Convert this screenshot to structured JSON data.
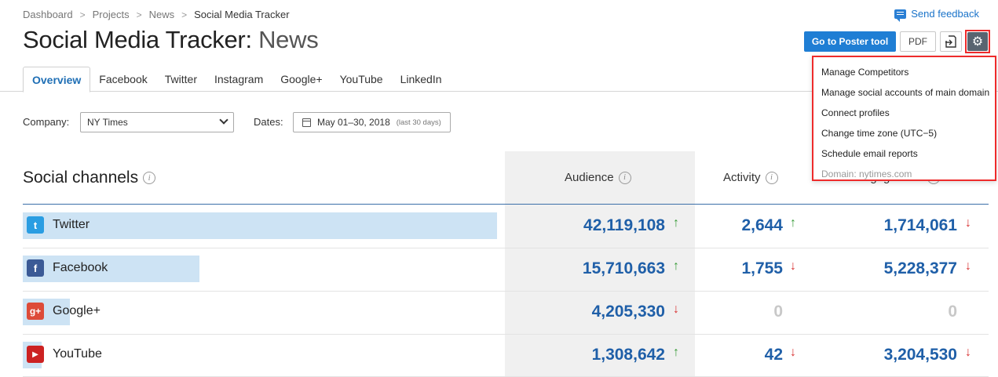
{
  "breadcrumb": [
    "Dashboard",
    "Projects",
    "News",
    "Social Media Tracker"
  ],
  "breadcrumb_separator": ">",
  "feedback": {
    "label": "Send feedback",
    "icon": "chat-bubble-icon"
  },
  "header": {
    "title": "Social Media Tracker:",
    "subtitle": "News"
  },
  "toolbar": {
    "poster_label": "Go to Poster tool",
    "pdf_label": "PDF",
    "export_icon": "export-icon",
    "settings_icon": "gear-icon"
  },
  "tabs": [
    {
      "label": "Overview",
      "active": true
    },
    {
      "label": "Facebook",
      "active": false
    },
    {
      "label": "Twitter",
      "active": false
    },
    {
      "label": "Instagram",
      "active": false
    },
    {
      "label": "Google+",
      "active": false
    },
    {
      "label": "YouTube",
      "active": false
    },
    {
      "label": "LinkedIn",
      "active": false
    }
  ],
  "filters": {
    "company_label": "Company:",
    "company_value": "NY Times",
    "dates_label": "Dates:",
    "dates_value": "May 01–30, 2018",
    "dates_note": "(last 30 days)"
  },
  "section": {
    "title": "Social channels",
    "info": "i"
  },
  "columns": {
    "audience": "Audience",
    "activity": "Activity",
    "engagement": "Engagement",
    "info": "i"
  },
  "channels": [
    {
      "name": "Twitter",
      "icon": "twitter-icon",
      "glyph": "t",
      "color": "#2a9de2",
      "audience": "42,119,108",
      "audience_trend": "↑",
      "activity": "2,644",
      "activity_trend": "↑",
      "engagement": "1,714,061",
      "engagement_trend": "↓",
      "audience_share": 1.0
    },
    {
      "name": "Facebook",
      "icon": "facebook-icon",
      "glyph": "f",
      "color": "#3b5a96",
      "audience": "15,710,663",
      "audience_trend": "↑",
      "activity": "1,755",
      "activity_trend": "↓",
      "engagement": "5,228,377",
      "engagement_trend": "↓",
      "audience_share": 0.373
    },
    {
      "name": "Google+",
      "icon": "google-plus-icon",
      "glyph": "g+",
      "color": "#dd4b39",
      "audience": "4,205,330",
      "audience_trend": "↓",
      "activity": "0",
      "activity_trend": "",
      "engagement": "0",
      "engagement_trend": "",
      "audience_share": 0.1
    },
    {
      "name": "YouTube",
      "icon": "youtube-icon",
      "glyph": "▶",
      "color": "#cc2222",
      "audience": "1,308,642",
      "audience_trend": "↑",
      "activity": "42",
      "activity_trend": "↓",
      "engagement": "3,204,530",
      "engagement_trend": "↓",
      "audience_share": 0.031
    }
  ],
  "settings_menu": [
    {
      "label": "Manage Competitors",
      "muted": false
    },
    {
      "label": "Manage social accounts of main domain",
      "muted": false
    },
    {
      "label": "Connect profiles",
      "muted": false
    },
    {
      "label": "Change time zone (UTC−5)",
      "muted": false
    },
    {
      "label": "Schedule email reports",
      "muted": false
    },
    {
      "label": "Domain: nytimes.com",
      "muted": true
    }
  ],
  "colors": {
    "accent": "#1f7ed4",
    "number": "#1f5fa8",
    "up": "#3a9d3a",
    "down": "#d83232",
    "highlight": "#ee2b2b"
  }
}
